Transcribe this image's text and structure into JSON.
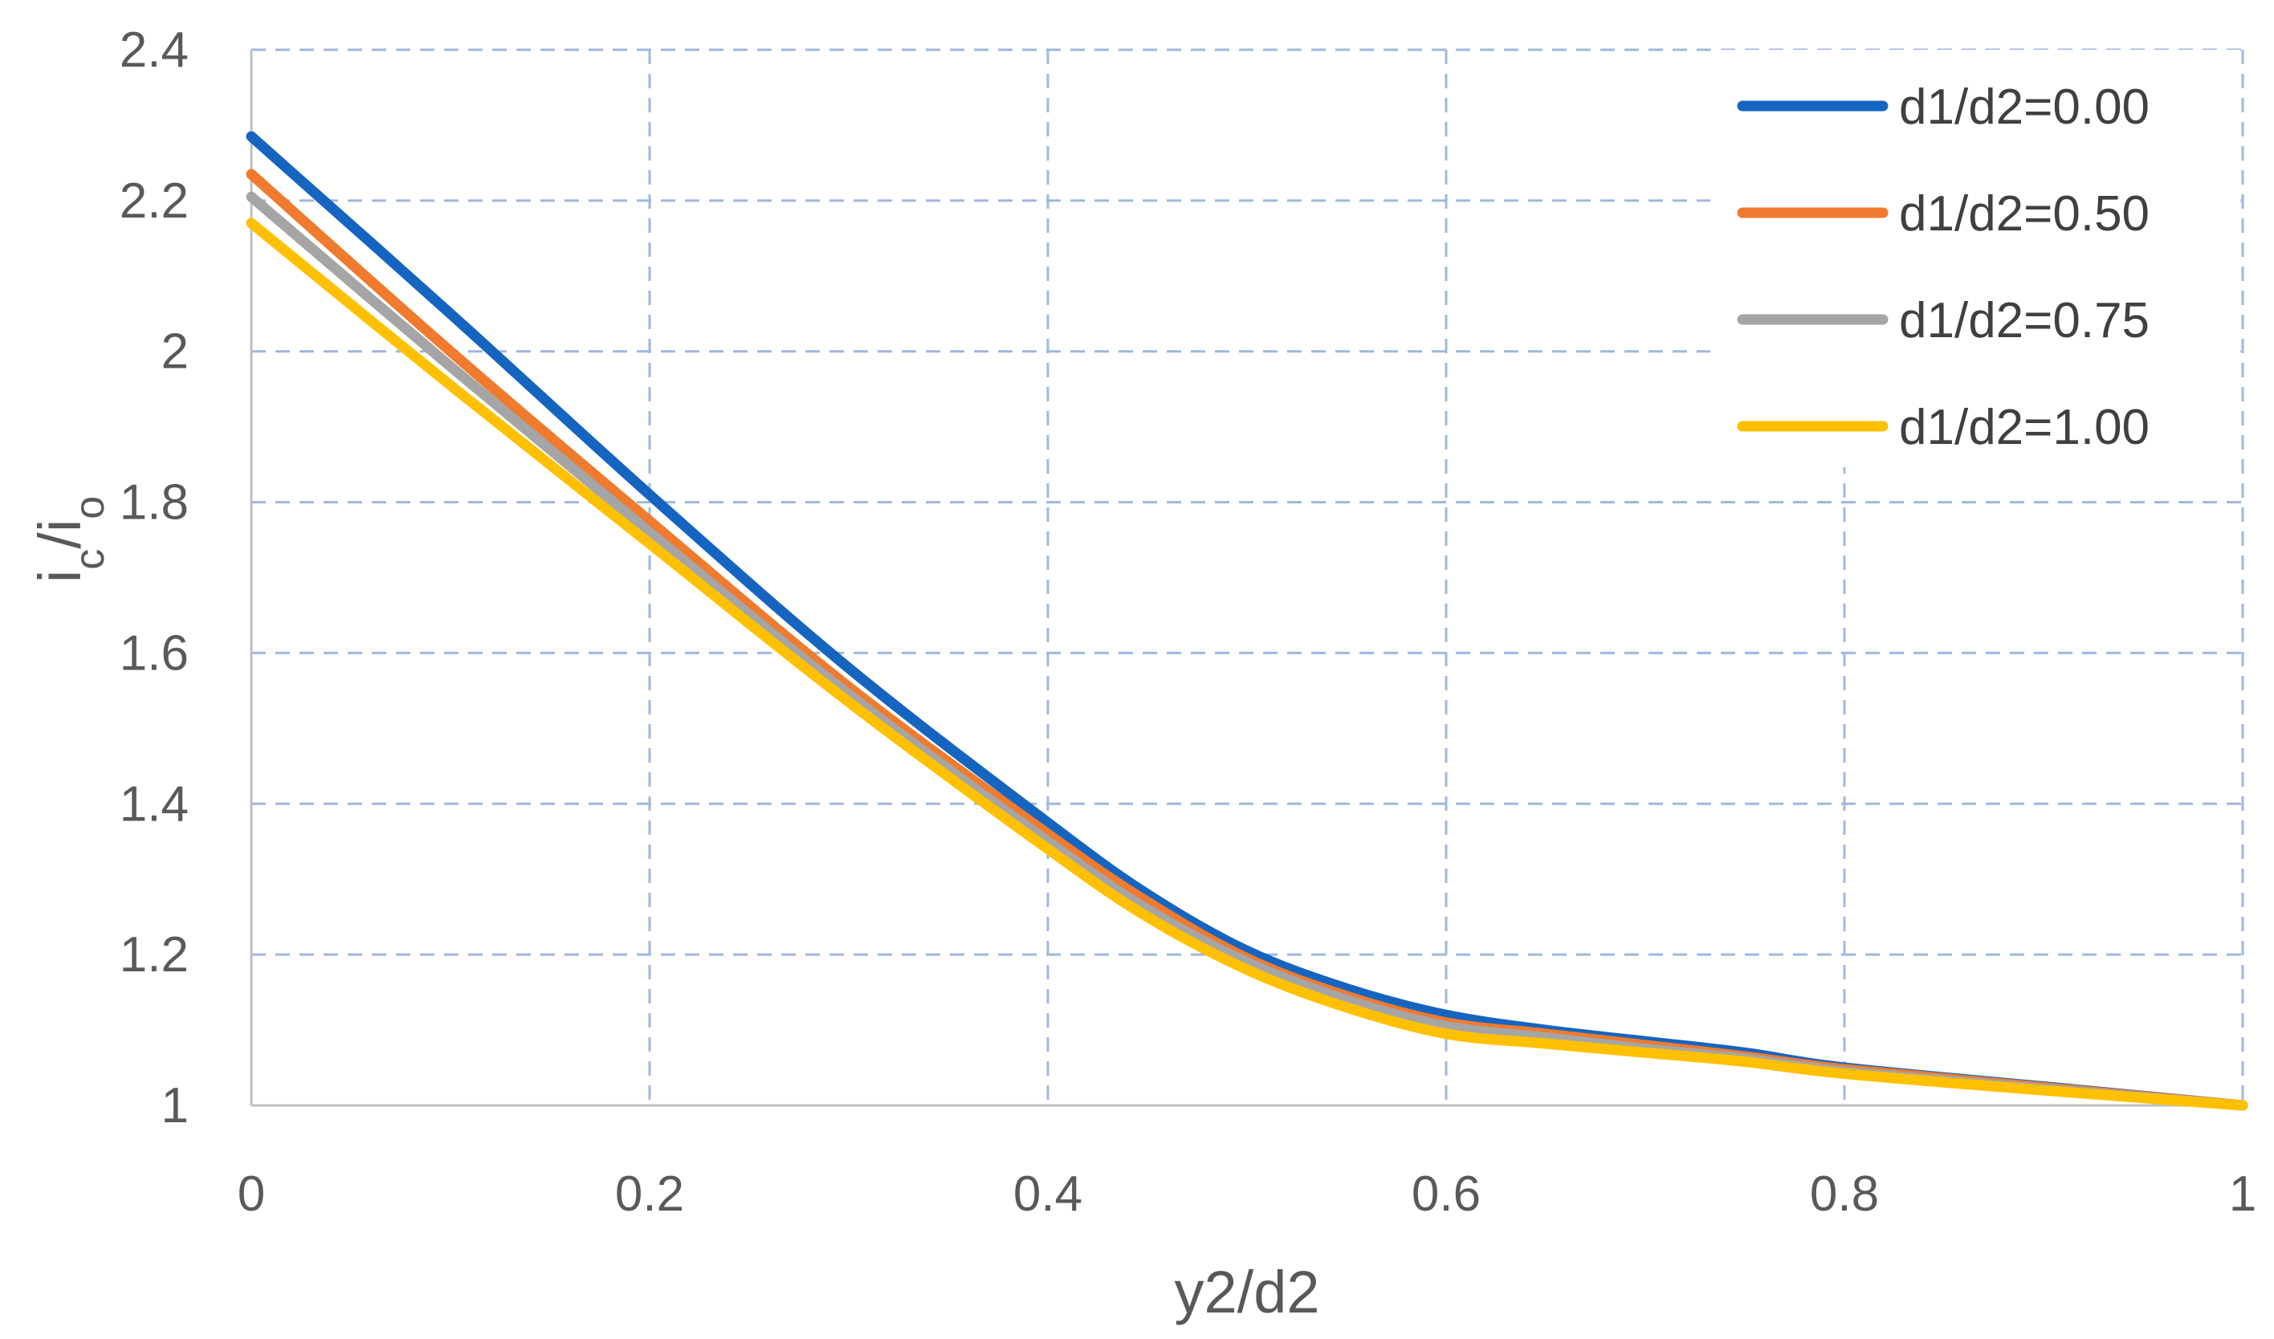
{
  "chart_data": {
    "type": "line",
    "title": "",
    "xlabel": "y2/d2",
    "ylabel": {
      "main": "i",
      "sub1": "c",
      "mid": "/i",
      "sub2": "o"
    },
    "xlim": [
      0,
      1
    ],
    "ylim": [
      1,
      2.4
    ],
    "xticks": [
      0,
      0.2,
      0.4,
      0.6,
      0.8,
      1
    ],
    "xtick_labels": [
      "0",
      "0.2",
      "0.4",
      "0.6",
      "0.8",
      "1"
    ],
    "yticks": [
      1,
      1.2,
      1.4,
      1.6,
      1.8,
      2,
      2.2,
      2.4
    ],
    "ytick_labels": [
      "1",
      "1.2",
      "1.4",
      "1.6",
      "1.8",
      "2",
      "2.2",
      "2.4"
    ],
    "grid": true,
    "grid_style": "dashed",
    "legend_position": "top-right",
    "x": [
      0,
      0.1,
      0.2,
      0.3,
      0.4,
      0.45,
      0.5,
      0.55,
      0.6,
      0.65,
      0.7,
      0.75,
      0.8,
      0.9,
      1.0
    ],
    "series": [
      {
        "name": "d1/d2=0.00",
        "color": "#1565C0",
        "values": [
          2.285,
          2.05,
          1.81,
          1.58,
          1.375,
          1.28,
          1.205,
          1.155,
          1.12,
          1.1,
          1.085,
          1.07,
          1.05,
          1.025,
          1.0
        ]
      },
      {
        "name": "d1/d2=0.50",
        "color": "#F07A2E",
        "values": [
          2.235,
          2.0,
          1.775,
          1.555,
          1.36,
          1.27,
          1.195,
          1.145,
          1.11,
          1.095,
          1.08,
          1.065,
          1.048,
          1.024,
          1.0
        ]
      },
      {
        "name": "d1/d2=0.75",
        "color": "#A5A5A5",
        "values": [
          2.205,
          1.98,
          1.76,
          1.545,
          1.35,
          1.26,
          1.19,
          1.14,
          1.105,
          1.09,
          1.075,
          1.062,
          1.045,
          1.022,
          1.0
        ]
      },
      {
        "name": "d1/d2=1.00",
        "color": "#FFC000",
        "values": [
          2.17,
          1.955,
          1.745,
          1.535,
          1.34,
          1.25,
          1.18,
          1.13,
          1.095,
          1.082,
          1.07,
          1.058,
          1.042,
          1.02,
          1.0
        ]
      }
    ]
  }
}
